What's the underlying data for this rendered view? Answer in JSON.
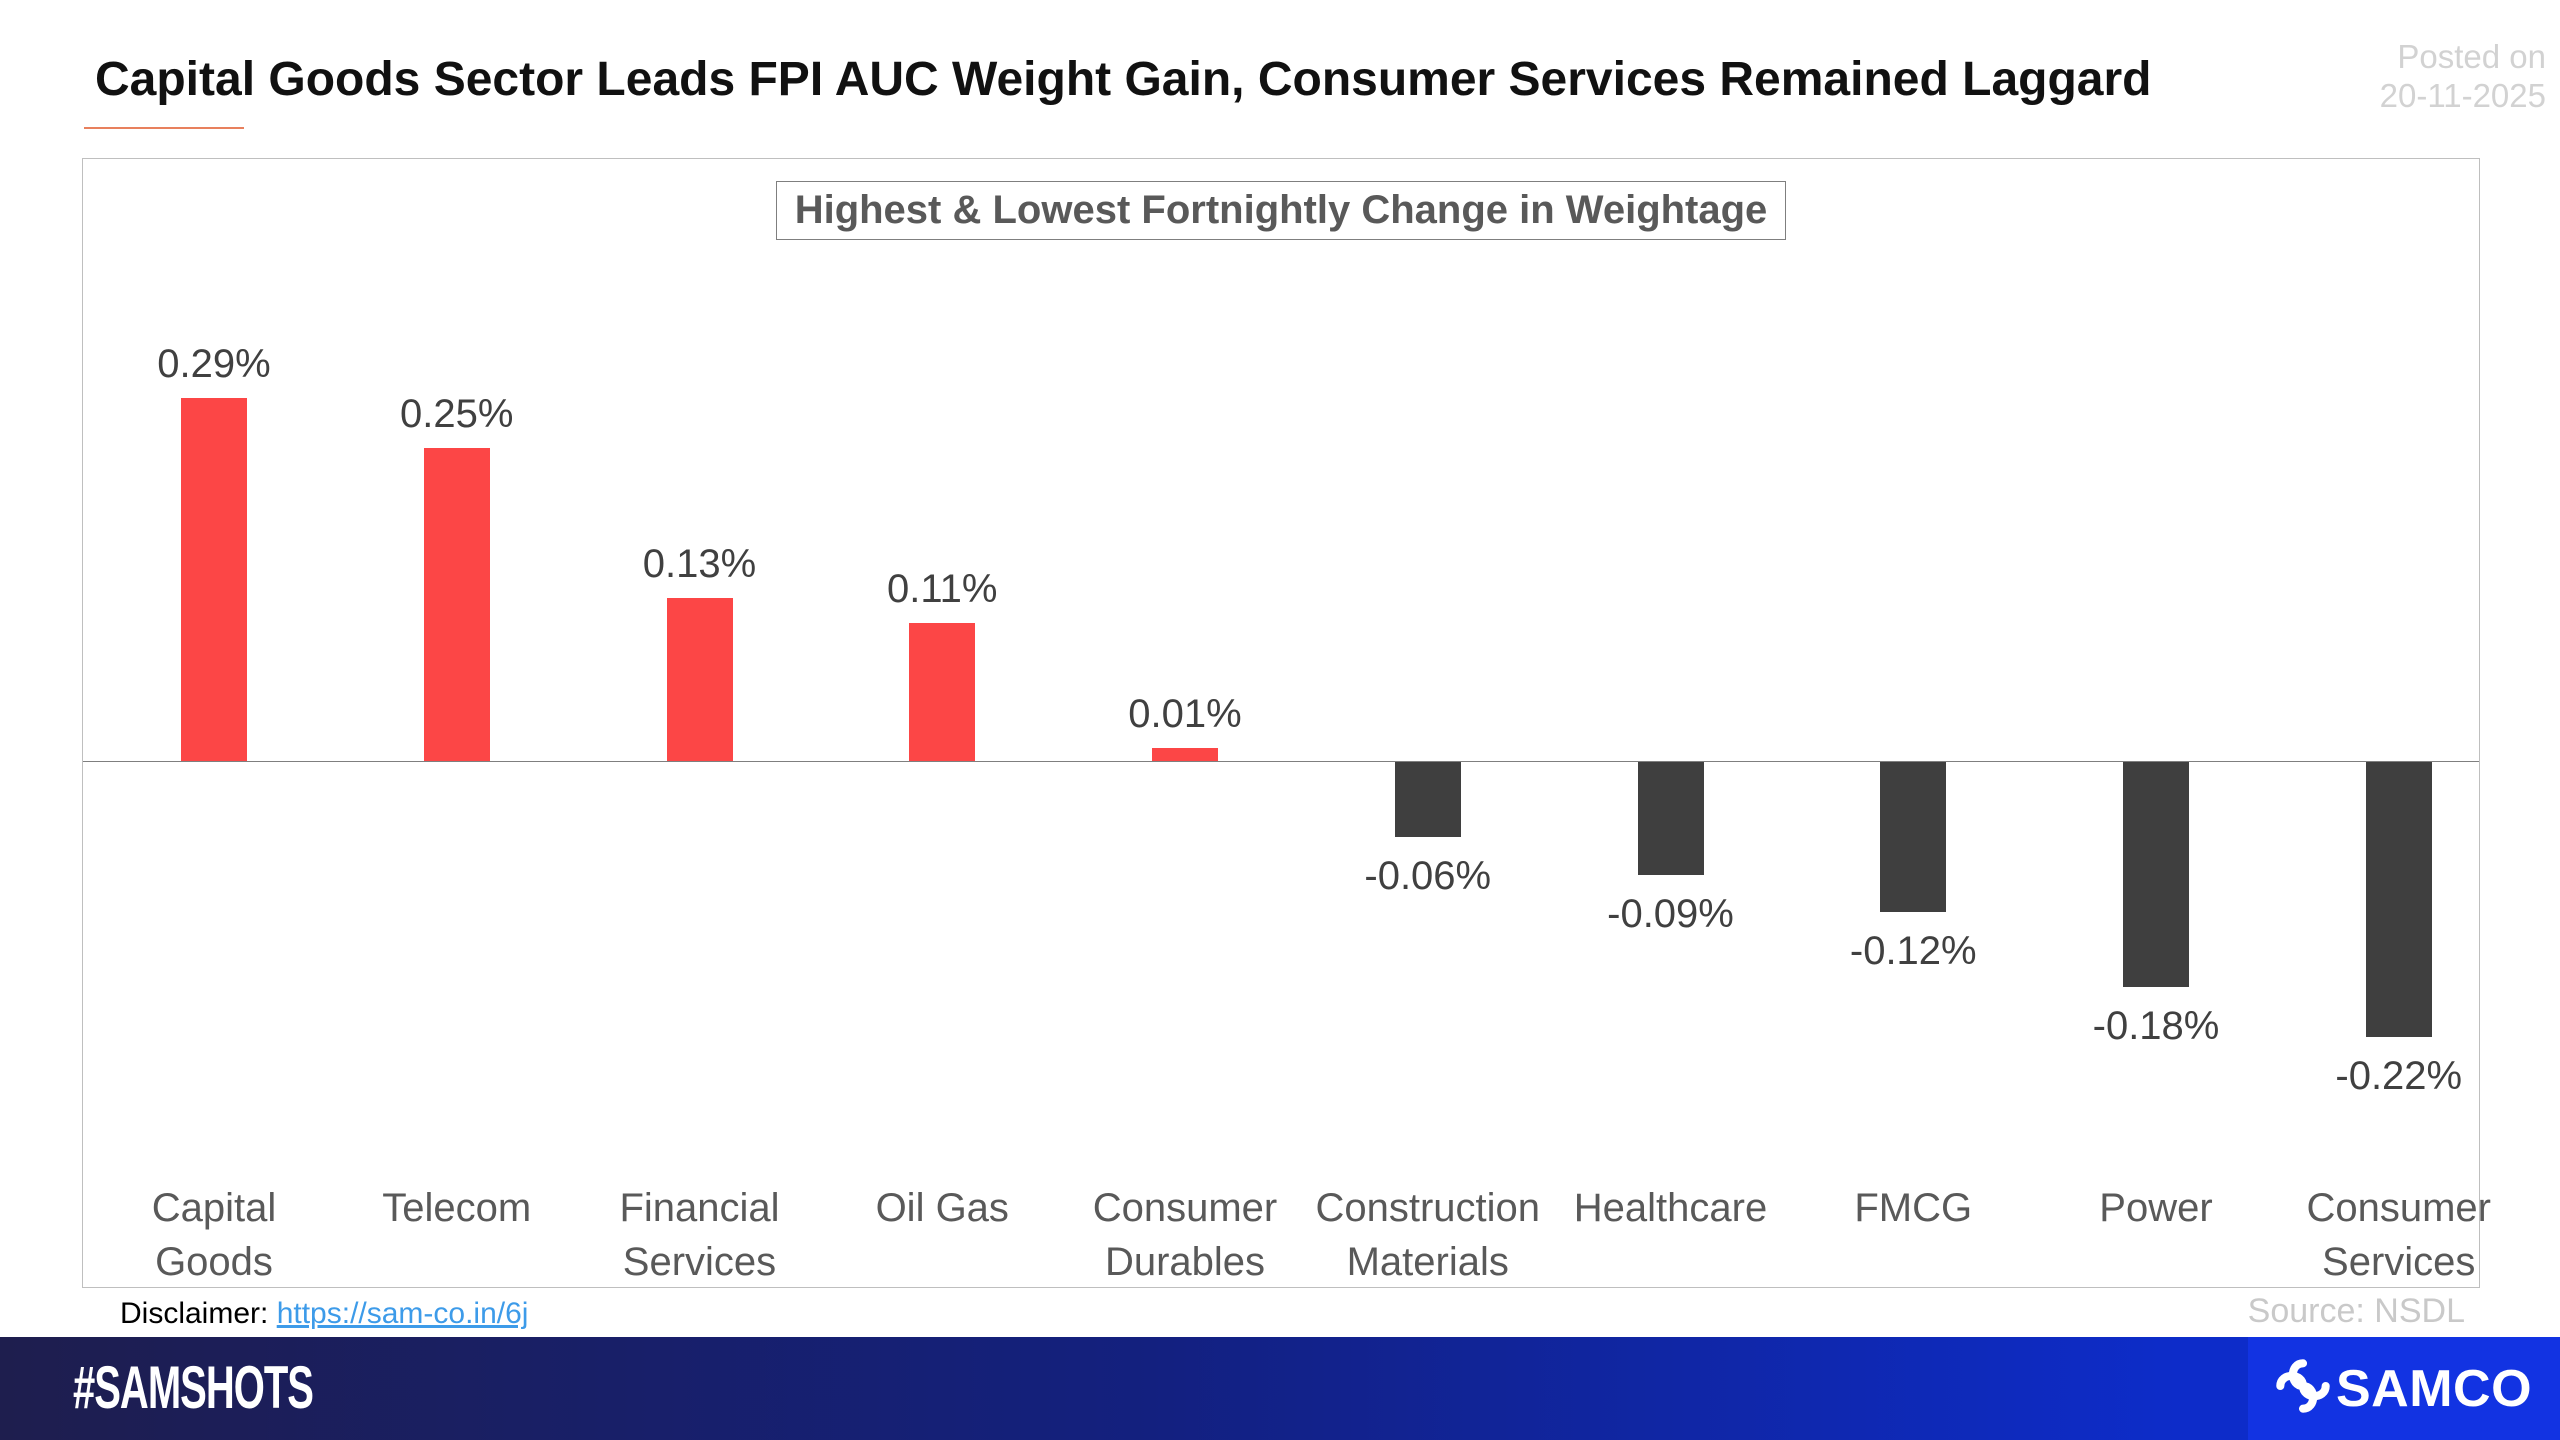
{
  "header": {
    "title": "Capital Goods Sector Leads FPI AUC Weight Gain, Consumer Services Remained Laggard",
    "posted_on": "Posted on",
    "posted_date": "20-11-2025"
  },
  "chart_data": {
    "type": "bar",
    "title": "Highest & Lowest Fortnightly Change in Weightage",
    "categories": [
      "Capital Goods",
      "Telecom",
      "Financial Services",
      "Oil Gas",
      "Consumer Durables",
      "Construction Materials",
      "Healthcare",
      "FMCG",
      "Power",
      "Consumer Services"
    ],
    "values": [
      0.29,
      0.25,
      0.13,
      0.11,
      0.01,
      -0.06,
      -0.09,
      -0.12,
      -0.18,
      -0.22
    ],
    "value_labels": [
      "0.29%",
      "0.25%",
      "0.13%",
      "0.11%",
      "0.01%",
      "-0.06%",
      "-0.09%",
      "-0.12%",
      "-0.18%",
      "-0.22%"
    ],
    "unit": "%",
    "xlabel": "",
    "ylabel": "",
    "ylim": [
      -0.26,
      0.33
    ],
    "grid": false,
    "legend": null,
    "positive_color": "#fc4646",
    "negative_color": "#3f3f3f",
    "value_label_color": "#404040",
    "axis_color": "#7f7f7f"
  },
  "footnotes": {
    "disclaimer_label": "Disclaimer:",
    "disclaimer_link": "https://sam-co.in/6j",
    "source": "Source: NSDL"
  },
  "footer": {
    "hashtag": "#SAMSHOTS",
    "brand": "SAMCO",
    "gradient_left": "#1e1e4e",
    "gradient_mid": "#13207f",
    "gradient_right": "#0d2cc9",
    "brand_bg": "#1233e2"
  }
}
